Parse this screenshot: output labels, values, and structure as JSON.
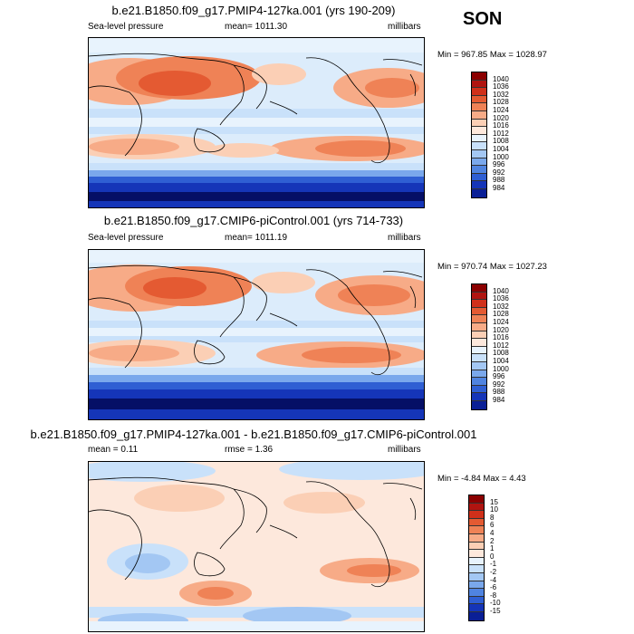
{
  "season": "SON",
  "palette_slp": [
    "#8b0000",
    "#b01410",
    "#d0301a",
    "#e45a32",
    "#ef8256",
    "#f7ab87",
    "#fbcfb5",
    "#fde8dc",
    "#e8f3fd",
    "#c9e1fa",
    "#a3c7f3",
    "#7aa8ec",
    "#5084e0",
    "#2f5fd3",
    "#1535b8",
    "#0a1f96",
    "#050f66"
  ],
  "palette_diff": [
    "#8b0000",
    "#b01410",
    "#d0301a",
    "#e45a32",
    "#ef8256",
    "#f7ab87",
    "#fbcfb5",
    "#fde8dc",
    "#e8f3fd",
    "#c9e1fa",
    "#a3c7f3",
    "#7aa8ec",
    "#5084e0",
    "#2f5fd3",
    "#1535b8",
    "#0a1f96",
    "#050f66"
  ],
  "panels": [
    {
      "title": "b.e21.B1850.f09_g17.PMIP4-127ka.001 (yrs 190-209)",
      "left_label": "Sea-level pressure",
      "center_label": "mean= 1011.30",
      "right_label": "millibars",
      "minmax": "Min = 967.85 Max = 1028.97",
      "colorbar_levels": [
        "1040",
        "1036",
        "1032",
        "1028",
        "1024",
        "1020",
        "1016",
        "1012",
        "1008",
        "1004",
        "1000",
        "996",
        "992",
        "988",
        "984"
      ]
    },
    {
      "title": "b.e21.B1850.f09_g17.CMIP6-piControl.001 (yrs 714-733)",
      "left_label": "Sea-level pressure",
      "center_label": "mean= 1011.19",
      "right_label": "millibars",
      "minmax": "Min = 970.74 Max = 1027.23",
      "colorbar_levels": [
        "1040",
        "1036",
        "1032",
        "1028",
        "1024",
        "1020",
        "1016",
        "1012",
        "1008",
        "1004",
        "1000",
        "996",
        "992",
        "988",
        "984"
      ]
    },
    {
      "title": "b.e21.B1850.f09_g17.PMIP4-127ka.001 - b.e21.B1850.f09_g17.CMIP6-piControl.001",
      "left_label": "mean =  0.11",
      "center_label": "rmse =   1.36",
      "right_label": "millibars",
      "minmax": "Min =  -4.84 Max =   4.43",
      "colorbar_levels": [
        "15",
        "10",
        "8",
        "6",
        "4",
        "2",
        "1",
        "0",
        "-1",
        "-2",
        "-4",
        "-6",
        "-8",
        "-10",
        "-15"
      ]
    }
  ]
}
